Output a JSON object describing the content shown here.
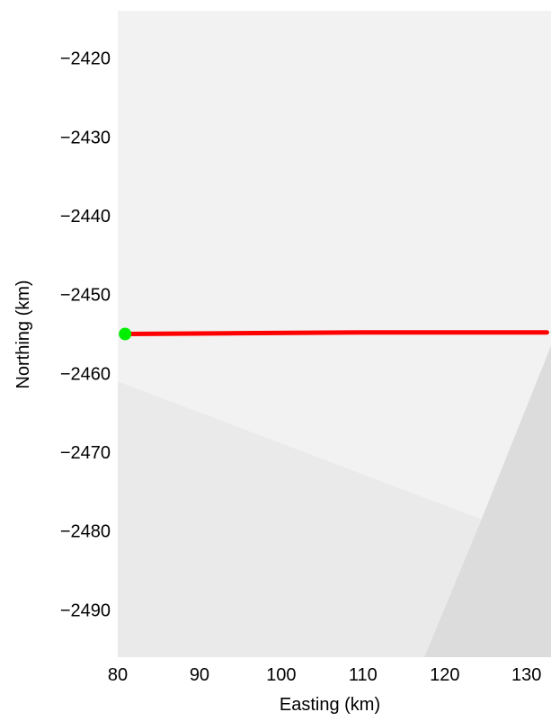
{
  "chart_data": {
    "type": "map",
    "xlabel": "Easting (km)",
    "ylabel": "Northing (km)",
    "xlim": [
      80,
      133
    ],
    "ylim": [
      -2496,
      -2414
    ],
    "x_ticks": [
      80,
      90,
      100,
      110,
      120,
      130
    ],
    "y_ticks": [
      -2420,
      -2430,
      -2440,
      -2450,
      -2460,
      -2470,
      -2480,
      -2490
    ],
    "tick_labels_x": [
      "80",
      "90",
      "100",
      "110",
      "120",
      "130"
    ],
    "tick_labels_y": [
      "−2420",
      "−2430",
      "−2440",
      "−2450",
      "−2460",
      "−2470",
      "−2480",
      "−2490"
    ],
    "grid": false,
    "legend": "none",
    "background_regions": [
      {
        "name": "upper-ice-region",
        "color": "#f2f2f2",
        "polygon": [
          [
            80,
            -2414
          ],
          [
            133,
            -2414
          ],
          [
            133,
            -2456.5
          ],
          [
            124.5,
            -2478.5
          ],
          [
            80,
            -2461
          ]
        ]
      },
      {
        "name": "lower-left-region",
        "color": "#eaeaea",
        "polygon": [
          [
            80,
            -2461
          ],
          [
            124.5,
            -2478.5
          ],
          [
            117.5,
            -2496
          ],
          [
            80,
            -2496
          ]
        ]
      },
      {
        "name": "lower-right-region",
        "color": "#dcdcdc",
        "polygon": [
          [
            133,
            -2456.5
          ],
          [
            133,
            -2496
          ],
          [
            117.5,
            -2496
          ],
          [
            124.5,
            -2478.5
          ]
        ]
      }
    ],
    "track": {
      "color": "#ff0000",
      "x": [
        80.9,
        95,
        110,
        120,
        132.5
      ],
      "y": [
        -2455.0,
        -2454.9,
        -2454.8,
        -2454.8,
        -2454.8
      ]
    },
    "start_marker": {
      "color": "#00ee00",
      "x": 80.9,
      "y": -2455.0
    }
  }
}
